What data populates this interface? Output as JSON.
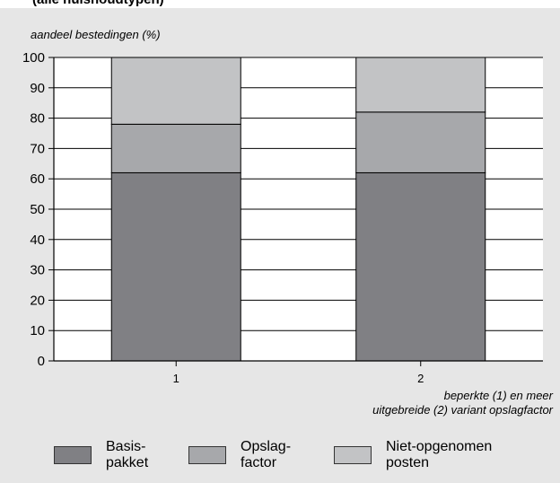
{
  "page_title": "(alle huishoudtypen)",
  "chart_data": {
    "type": "bar",
    "stacked": true,
    "categories": [
      "1",
      "2"
    ],
    "series": [
      {
        "name": "Basis-\npakket",
        "values": [
          62,
          62
        ],
        "color": "#808084"
      },
      {
        "name": "Opslag-\nfactor",
        "values": [
          16,
          20
        ],
        "color": "#a7a8ab"
      },
      {
        "name": "Niet-opgenomen\nposten",
        "values": [
          22,
          18
        ],
        "color": "#c2c3c5"
      }
    ],
    "ylabel": "aandeel bestedingen (%)",
    "xlabel": "beperkte (1) en meer\nuitgebreide (2) variant opslagfactor",
    "ylim": [
      0,
      100
    ],
    "yticks": [
      0,
      10,
      20,
      30,
      40,
      50,
      60,
      70,
      80,
      90,
      100
    ],
    "grid": true,
    "legend_position": "bottom"
  }
}
